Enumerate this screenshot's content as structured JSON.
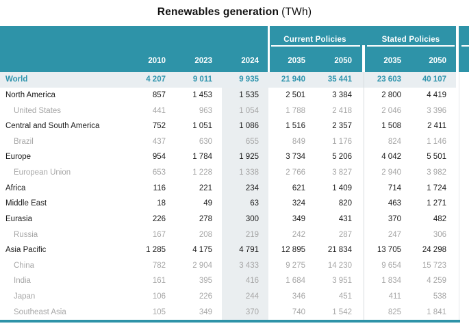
{
  "title": {
    "text": "Renewables generation",
    "unit": "(TWh)"
  },
  "chart_data": {
    "type": "table",
    "title": "Renewables generation (TWh)",
    "unit": "TWh",
    "column_groups": [
      {
        "label": "",
        "columns": [
          "2010",
          "2023",
          "2024"
        ]
      },
      {
        "label": "Current Policies",
        "columns": [
          "2035",
          "2050"
        ]
      },
      {
        "label": "Stated Policies",
        "columns": [
          "2035",
          "2050"
        ]
      }
    ],
    "highlight_row": "World",
    "highlight_column": "2024",
    "rows": [
      {
        "label": "World",
        "type": "world",
        "values": [
          "4 207",
          "9 011",
          "9 935",
          "21 940",
          "35 441",
          "23 603",
          "40 107"
        ]
      },
      {
        "label": "North America",
        "type": "region",
        "values": [
          "857",
          "1 453",
          "1 535",
          "2 501",
          "3 384",
          "2 800",
          "4 419"
        ]
      },
      {
        "label": "United States",
        "type": "subregion",
        "values": [
          "441",
          "963",
          "1 054",
          "1 788",
          "2 418",
          "2 046",
          "3 396"
        ]
      },
      {
        "label": "Central and South America",
        "type": "region",
        "values": [
          "752",
          "1 051",
          "1 086",
          "1 516",
          "2 357",
          "1 508",
          "2 411"
        ]
      },
      {
        "label": "Brazil",
        "type": "subregion",
        "values": [
          "437",
          "630",
          "655",
          "849",
          "1 176",
          "824",
          "1 146"
        ]
      },
      {
        "label": "Europe",
        "type": "region",
        "values": [
          "954",
          "1 784",
          "1 925",
          "3 734",
          "5 206",
          "4 042",
          "5 501"
        ]
      },
      {
        "label": "European Union",
        "type": "subregion",
        "values": [
          "653",
          "1 228",
          "1 338",
          "2 766",
          "3 827",
          "2 940",
          "3 982"
        ]
      },
      {
        "label": "Africa",
        "type": "region",
        "values": [
          "116",
          "221",
          "234",
          "621",
          "1 409",
          "714",
          "1 724"
        ]
      },
      {
        "label": "Middle East",
        "type": "region",
        "values": [
          "18",
          "49",
          "63",
          "324",
          "820",
          "463",
          "1 271"
        ]
      },
      {
        "label": "Eurasia",
        "type": "region",
        "values": [
          "226",
          "278",
          "300",
          "349",
          "431",
          "370",
          "482"
        ]
      },
      {
        "label": "Russia",
        "type": "subregion",
        "values": [
          "167",
          "208",
          "219",
          "242",
          "287",
          "247",
          "306"
        ]
      },
      {
        "label": "Asia Pacific",
        "type": "region",
        "values": [
          "1 285",
          "4 175",
          "4 791",
          "12 895",
          "21 834",
          "13 705",
          "24 298"
        ]
      },
      {
        "label": "China",
        "type": "subregion",
        "values": [
          "782",
          "2 904",
          "3 433",
          "9 275",
          "14 230",
          "9 654",
          "15 723"
        ]
      },
      {
        "label": "India",
        "type": "subregion",
        "values": [
          "161",
          "395",
          "416",
          "1 684",
          "3 951",
          "1 834",
          "4 259"
        ]
      },
      {
        "label": "Japan",
        "type": "subregion",
        "values": [
          "106",
          "226",
          "244",
          "346",
          "451",
          "411",
          "538"
        ]
      },
      {
        "label": "Southeast Asia",
        "type": "subregion",
        "values": [
          "105",
          "349",
          "370",
          "740",
          "1 542",
          "825",
          "1 841"
        ]
      }
    ]
  },
  "colors": {
    "teal": "#2e93a8",
    "teal-text": "#2e94ad",
    "world-bg": "#e9eef1",
    "band-bg": "#eaeef0",
    "divider": "#d5dbde",
    "faint": "#e4e8ea",
    "sub": "#a6a6a6",
    "dark": "#1a1a1a"
  }
}
